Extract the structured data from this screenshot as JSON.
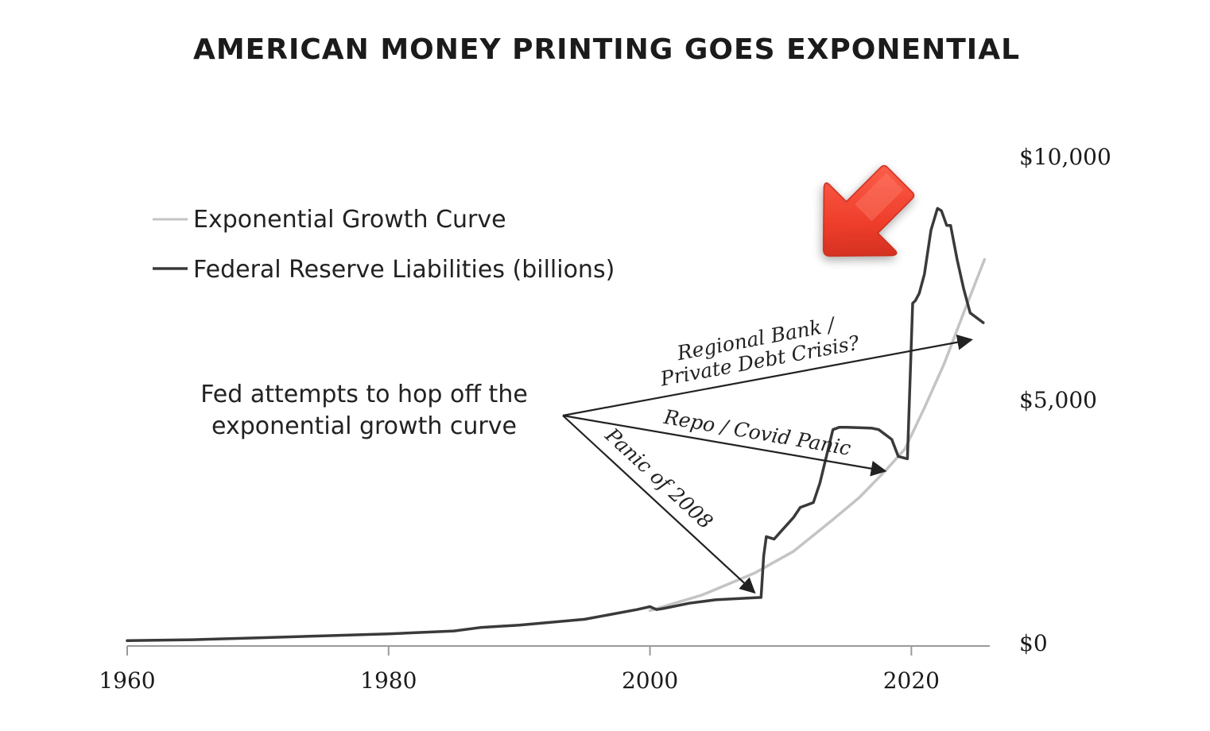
{
  "chart_data": {
    "type": "line",
    "title": "AMERICAN MONEY PRINTING GOES EXPONENTIAL",
    "xlabel": "",
    "ylabel": "",
    "xlim": [
      1960,
      2026
    ],
    "ylim": [
      0,
      10000
    ],
    "x_ticks": [
      1960,
      1980,
      2000,
      2020
    ],
    "x_tick_labels": [
      "1960",
      "1980",
      "2000",
      "2020"
    ],
    "y_ticks": [
      0,
      5000,
      10000
    ],
    "y_tick_labels": [
      "$0",
      "$5,000",
      "$10,000"
    ],
    "y_axis_side": "right",
    "grid": false,
    "legend_position": "upper-left",
    "series": [
      {
        "name": "Exponential Growth Curve",
        "color": "#c4c4c4",
        "x": [
          2000,
          2004,
          2008,
          2011,
          2014,
          2016,
          2018,
          2019.5,
          2021,
          2022.5,
          2024,
          2025.6
        ],
        "y": [
          680,
          1000,
          1450,
          1900,
          2550,
          3000,
          3550,
          4000,
          4850,
          5750,
          6800,
          7900
        ]
      },
      {
        "name": "Federal Reserve Liabilities (billions)",
        "color": "#3a3a3a",
        "x": [
          1960,
          1965,
          1970,
          1975,
          1980,
          1985,
          1987,
          1990,
          1995,
          1999,
          2000,
          2000.5,
          2001,
          2003,
          2005,
          2007,
          2008.5,
          2008.7,
          2008.9,
          2009.5,
          2010,
          2011,
          2011.5,
          2012,
          2012.5,
          2013,
          2014,
          2014.5,
          2015,
          2016,
          2017,
          2017.5,
          2018.5,
          2019,
          2019.7,
          2020.1,
          2020.3,
          2020.6,
          2021,
          2021.5,
          2022,
          2022.3,
          2022.7,
          2023,
          2023.5,
          2024,
          2024.5,
          2025.5
        ],
        "y": [
          60,
          80,
          120,
          160,
          200,
          260,
          330,
          380,
          500,
          700,
          760,
          700,
          720,
          830,
          900,
          930,
          950,
          1800,
          2200,
          2150,
          2300,
          2600,
          2800,
          2850,
          2900,
          3300,
          4400,
          4450,
          4450,
          4440,
          4430,
          4400,
          4200,
          3850,
          3800,
          7000,
          7050,
          7200,
          7600,
          8500,
          8950,
          8900,
          8600,
          8600,
          7900,
          7300,
          6800,
          6600
        ]
      }
    ],
    "annotations": {
      "note": "Fed attempts to hop off the exponential growth curve",
      "arrows": [
        {
          "label": "Panic of 2008",
          "target_x": 2008.0,
          "target_y": 1050
        },
        {
          "label": "Repo / Covid Panic",
          "target_x": 2018.0,
          "target_y": 3550
        },
        {
          "label_line1": "Regional Bank /",
          "label_line2": "Private Debt Crisis?",
          "target_x": 2024.6,
          "target_y": 6250
        }
      ]
    }
  },
  "colors": {
    "emphasis_arrow": "#ee3d2a",
    "axis": "#9a9a9a",
    "annotation": "#222222"
  }
}
